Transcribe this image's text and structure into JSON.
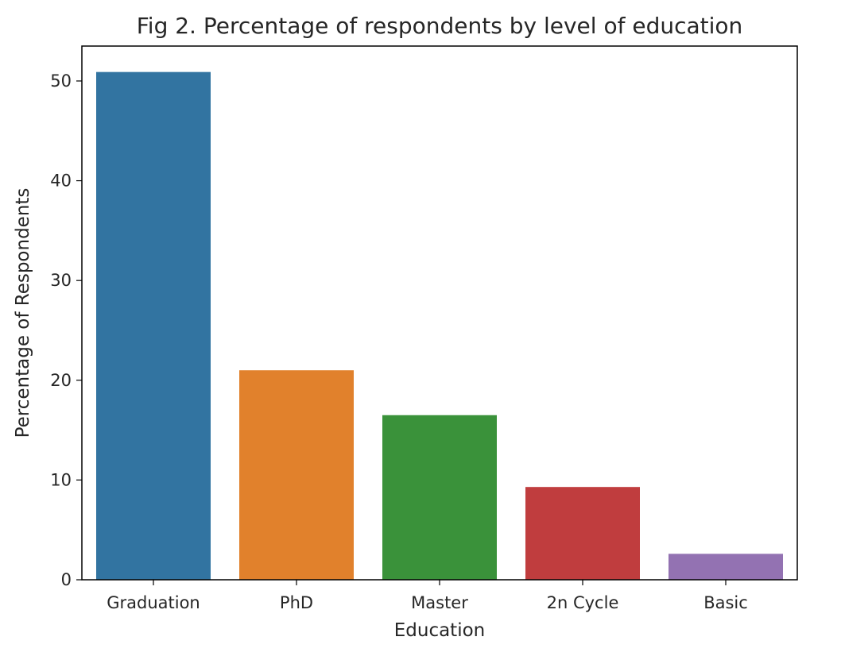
{
  "chart_data": {
    "type": "bar",
    "title": "Fig 2. Percentage of respondents by level of education",
    "xlabel": "Education",
    "ylabel": "Percentage of Respondents",
    "categories": [
      "Graduation",
      "PhD",
      "Master",
      "2n Cycle",
      "Basic"
    ],
    "values": [
      50.9,
      21.0,
      16.5,
      9.3,
      2.6
    ],
    "colors": [
      "#3274a1",
      "#e1812c",
      "#3a923a",
      "#c03d3e",
      "#9372b2"
    ],
    "ylim": [
      0,
      53.5
    ],
    "yticks": [
      0,
      10,
      20,
      30,
      40,
      50
    ],
    "grid": false,
    "legend": "none"
  }
}
